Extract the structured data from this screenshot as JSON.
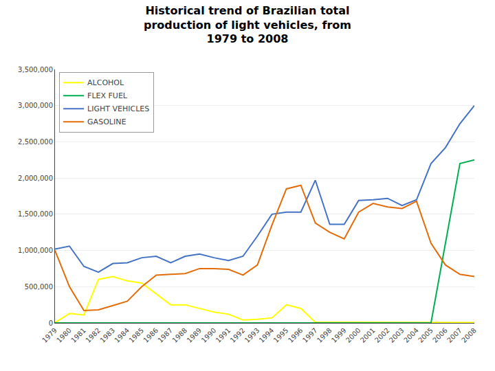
{
  "chart_data": {
    "type": "line",
    "title": "Historical trend of Brazilian total\nproduction of light vehicles, from\n1979 to 2008",
    "x": [
      1979,
      1980,
      1981,
      1982,
      1983,
      1984,
      1985,
      1986,
      1987,
      1988,
      1989,
      1990,
      1991,
      1992,
      1993,
      1994,
      1995,
      1996,
      1997,
      1998,
      1999,
      2000,
      2001,
      2002,
      2003,
      2004,
      2005,
      2006,
      2007,
      2008
    ],
    "series": [
      {
        "name": "ALCOHOL",
        "color": "#FFFF00",
        "values": [
          5000,
          130000,
          110000,
          600000,
          640000,
          580000,
          550000,
          400000,
          250000,
          250000,
          200000,
          150000,
          120000,
          40000,
          50000,
          70000,
          250000,
          200000,
          10000,
          10000,
          5000,
          5000,
          5000,
          5000,
          5000,
          5000,
          5000,
          5000,
          5000,
          5000
        ]
      },
      {
        "name": "FLEX FUEL",
        "color": "#00B050",
        "values": [
          0,
          0,
          0,
          0,
          0,
          0,
          0,
          0,
          0,
          0,
          0,
          0,
          0,
          0,
          0,
          0,
          0,
          0,
          0,
          0,
          0,
          0,
          0,
          0,
          0,
          0,
          0,
          1100000,
          2200000,
          2250000
        ]
      },
      {
        "name": "LIGHT VEHICLES",
        "color": "#4472C4",
        "values": [
          1020000,
          1060000,
          780000,
          700000,
          820000,
          830000,
          900000,
          920000,
          830000,
          920000,
          950000,
          900000,
          860000,
          920000,
          1200000,
          1500000,
          1530000,
          1530000,
          1970000,
          1360000,
          1360000,
          1690000,
          1700000,
          1720000,
          1620000,
          1700000,
          2200000,
          2420000,
          2750000,
          3000000
        ]
      },
      {
        "name": "GASOLINE",
        "color": "#E36C09",
        "values": [
          1000000,
          500000,
          170000,
          180000,
          240000,
          300000,
          500000,
          660000,
          670000,
          680000,
          750000,
          750000,
          740000,
          660000,
          800000,
          1350000,
          1850000,
          1900000,
          1380000,
          1250000,
          1160000,
          1530000,
          1650000,
          1600000,
          1580000,
          1680000,
          1100000,
          800000,
          670000,
          640000
        ]
      }
    ],
    "xlim": [
      1979,
      2008
    ],
    "xticks": [
      1979,
      1980,
      1981,
      1982,
      1983,
      1984,
      1985,
      1986,
      1987,
      1988,
      1989,
      1990,
      1991,
      1992,
      1993,
      1994,
      1995,
      1996,
      1997,
      1998,
      1999,
      2000,
      2001,
      2002,
      2003,
      2004,
      2005,
      2006,
      2007,
      2008
    ],
    "ylim": [
      0,
      3500000
    ],
    "yticks": [
      0,
      {
        "value": 500000,
        "label": "500,000"
      },
      {
        "value": 1000000,
        "label": "1,000,000"
      },
      {
        "value": 1500000,
        "label": "1,500,000"
      },
      {
        "value": 2000000,
        "label": "2,000,000"
      },
      {
        "value": 2500000,
        "label": "2,500,000"
      },
      {
        "value": 3000000,
        "label": "3,000,000"
      },
      {
        "value": 3500000,
        "label": "3,500,000"
      }
    ],
    "grid": "y",
    "legend": "upper left"
  }
}
